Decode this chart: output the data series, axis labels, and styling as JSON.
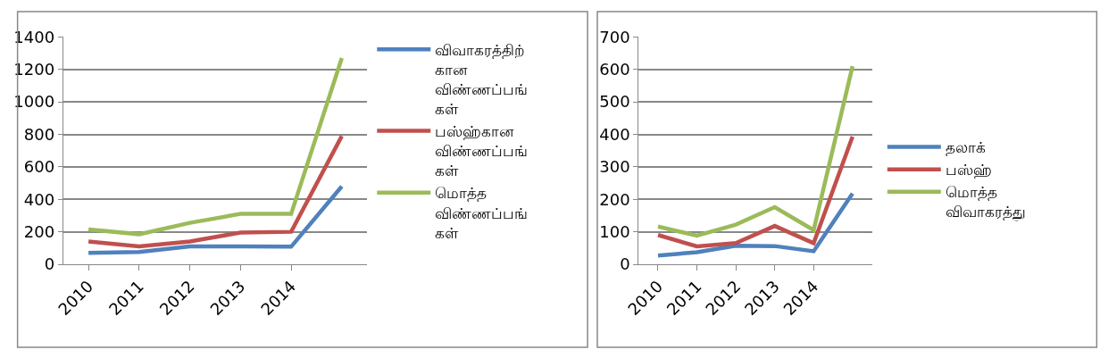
{
  "chart_data": [
    {
      "type": "line",
      "categories": [
        "2010",
        "2011",
        "2012",
        "2013",
        "2014",
        null
      ],
      "ylim": [
        0,
        1400
      ],
      "yticks": [
        0,
        200,
        400,
        600,
        800,
        1000,
        1200,
        1400
      ],
      "grid": "y",
      "legend": "right",
      "marker": "none",
      "line_style": "solid",
      "series": [
        {
          "name": "விவாகரத்திற்\nகான\nவிண்ணப்பங்\nகள்",
          "color": "#4f81bd",
          "values": [
            70,
            75,
            110,
            110,
            108,
            480
          ]
        },
        {
          "name": "பஸ்ஹ்கான\nவிண்ணப்பங்\nகள்",
          "color": "#c0504d",
          "values": [
            140,
            110,
            140,
            195,
            200,
            790
          ]
        },
        {
          "name": "மொத்த\nவிண்ணப்பங்\nகள்",
          "color": "#9bbb59",
          "values": [
            215,
            185,
            255,
            310,
            310,
            1270
          ]
        }
      ]
    },
    {
      "type": "line",
      "categories": [
        "2010",
        "2011",
        "2012",
        "2013",
        "2014",
        null
      ],
      "ylim": [
        0,
        700
      ],
      "yticks": [
        0,
        100,
        200,
        300,
        400,
        500,
        600,
        700
      ],
      "grid": "y",
      "legend": "right",
      "marker": "none",
      "line_style": "solid",
      "series": [
        {
          "name": "தலாக்",
          "color": "#4f81bd",
          "values": [
            27,
            37,
            57,
            56,
            40,
            218
          ]
        },
        {
          "name": "பஸ்ஹ்",
          "color": "#c0504d",
          "values": [
            90,
            55,
            65,
            118,
            65,
            393
          ]
        },
        {
          "name": "மொத்த\nவிவாகரத்து",
          "color": "#9bbb59",
          "values": [
            116,
            88,
            122,
            176,
            105,
            610
          ]
        }
      ]
    }
  ]
}
